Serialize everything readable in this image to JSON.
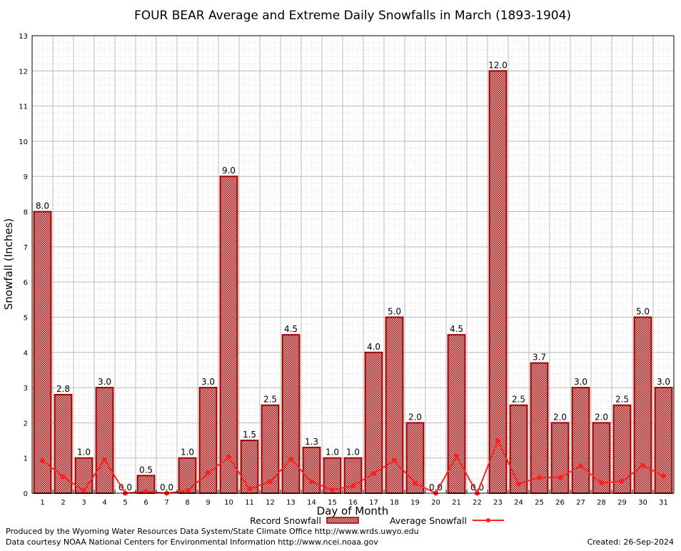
{
  "chart_data": {
    "type": "bar",
    "title": "FOUR BEAR Average and Extreme Daily Snowfalls in March (1893-1904)",
    "xlabel": "Day of Month",
    "ylabel": "Snowfall (Inches)",
    "ylim": [
      0,
      13
    ],
    "yticks": [
      "0",
      "1",
      "2",
      "3",
      "4",
      "5",
      "6",
      "7",
      "8",
      "9",
      "10",
      "11",
      "12",
      "13"
    ],
    "categories": [
      "1",
      "2",
      "3",
      "4",
      "5",
      "6",
      "7",
      "8",
      "9",
      "10",
      "11",
      "12",
      "13",
      "14",
      "15",
      "16",
      "17",
      "18",
      "19",
      "20",
      "21",
      "22",
      "23",
      "24",
      "25",
      "26",
      "27",
      "28",
      "29",
      "30",
      "31"
    ],
    "grid": true,
    "legend_placement": "bottom",
    "series": [
      {
        "name": "Record Snowfall",
        "type": "bar",
        "color": "#a00000",
        "values": [
          8.0,
          2.8,
          1.0,
          3.0,
          0.0,
          0.5,
          0.0,
          1.0,
          3.0,
          9.0,
          1.5,
          2.5,
          4.5,
          1.3,
          1.0,
          1.0,
          4.0,
          5.0,
          2.0,
          0.0,
          4.5,
          0.0,
          12.0,
          2.5,
          3.7,
          2.0,
          3.0,
          2.0,
          2.5,
          5.0,
          3.0
        ],
        "labels": [
          "8.0",
          "2.8",
          "1.0",
          "3.0",
          "0.0",
          "0.5",
          "0.0",
          "1.0",
          "3.0",
          "9.0",
          "1.5",
          "2.5",
          "4.5",
          "1.3",
          "1.0",
          "1.0",
          "4.0",
          "5.0",
          "2.0",
          "0.0",
          "4.5",
          "0.0",
          "12.0",
          "2.5",
          "3.7",
          "2.0",
          "3.0",
          "2.0",
          "2.5",
          "5.0",
          "3.0"
        ]
      },
      {
        "name": "Average Snowfall",
        "type": "line",
        "color": "#ff2020",
        "values": [
          0.92,
          0.47,
          0.07,
          0.95,
          0.0,
          0.05,
          0.0,
          0.07,
          0.57,
          1.03,
          0.12,
          0.33,
          0.96,
          0.33,
          0.09,
          0.21,
          0.56,
          0.93,
          0.28,
          0.0,
          1.05,
          0.0,
          1.49,
          0.26,
          0.45,
          0.44,
          0.78,
          0.29,
          0.34,
          0.79,
          0.49
        ]
      }
    ]
  },
  "footer": {
    "line1": "Produced by the Wyoming Water Resources Data System/State Climate Office http://www.wrds.uwyo.edu",
    "line2": "Data courtesy NOAA National Centers for Environmental Information http://www.ncei.noaa.gov",
    "created": "Created:  26-Sep-2024"
  }
}
